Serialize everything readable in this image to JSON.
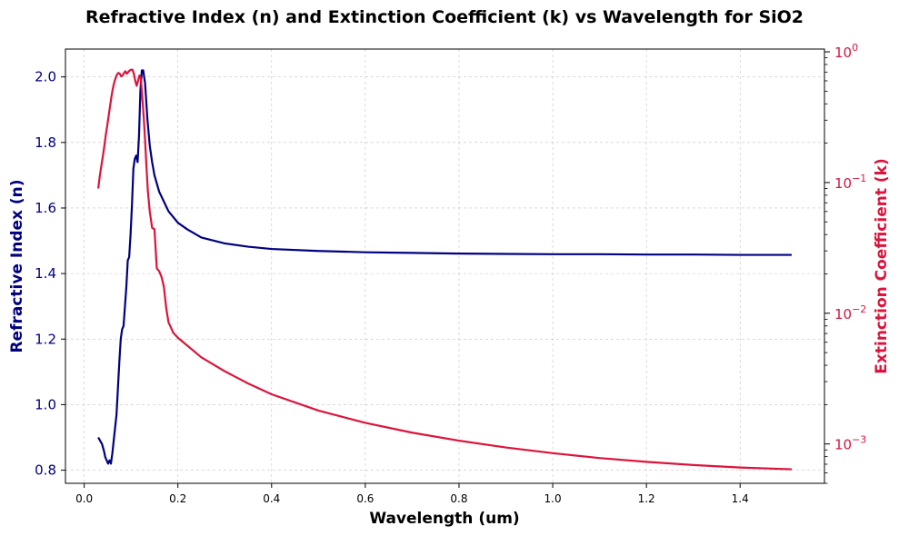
{
  "chart_data": {
    "type": "line",
    "title": "Refractive Index (n) and Extinction Coefficient (k) vs Wavelength for SiO2",
    "xlabel": "Wavelength (um)",
    "ylabel_left": "Refractive Index (n)",
    "ylabel_right": "Extinction Coefficient (k)",
    "xlim": [
      -0.04,
      1.58
    ],
    "ylim_left": [
      0.76,
      2.085
    ],
    "ylim_right": [
      0.0005,
      1.05
    ],
    "right_scale": "log",
    "grid": true,
    "x_ticks": [
      "0.0",
      "0.2",
      "0.4",
      "0.6",
      "0.8",
      "1.0",
      "1.2",
      "1.4"
    ],
    "left_ticks": [
      "0.8",
      "1.0",
      "1.2",
      "1.4",
      "1.6",
      "1.8",
      "2.0"
    ],
    "right_ticks": [
      "10^-3",
      "10^-2",
      "10^-1",
      "10^0"
    ],
    "series": [
      {
        "name": "n",
        "axis": "left",
        "color": "#000080",
        "points": [
          [
            0.03,
            0.9
          ],
          [
            0.038,
            0.88
          ],
          [
            0.042,
            0.86
          ],
          [
            0.045,
            0.84
          ],
          [
            0.048,
            0.83
          ],
          [
            0.051,
            0.82
          ],
          [
            0.054,
            0.83
          ],
          [
            0.057,
            0.82
          ],
          [
            0.06,
            0.85
          ],
          [
            0.063,
            0.89
          ],
          [
            0.066,
            0.93
          ],
          [
            0.069,
            0.97
          ],
          [
            0.072,
            1.05
          ],
          [
            0.075,
            1.13
          ],
          [
            0.078,
            1.2
          ],
          [
            0.081,
            1.23
          ],
          [
            0.084,
            1.24
          ],
          [
            0.087,
            1.3
          ],
          [
            0.09,
            1.36
          ],
          [
            0.093,
            1.44
          ],
          [
            0.096,
            1.45
          ],
          [
            0.099,
            1.52
          ],
          [
            0.102,
            1.61
          ],
          [
            0.105,
            1.72
          ],
          [
            0.108,
            1.75
          ],
          [
            0.111,
            1.76
          ],
          [
            0.114,
            1.74
          ],
          [
            0.117,
            1.82
          ],
          [
            0.12,
            1.96
          ],
          [
            0.123,
            2.02
          ],
          [
            0.126,
            2.02
          ],
          [
            0.13,
            1.98
          ],
          [
            0.135,
            1.87
          ],
          [
            0.14,
            1.79
          ],
          [
            0.145,
            1.74
          ],
          [
            0.15,
            1.7
          ],
          [
            0.16,
            1.65
          ],
          [
            0.17,
            1.62
          ],
          [
            0.18,
            1.59
          ],
          [
            0.2,
            1.555
          ],
          [
            0.22,
            1.535
          ],
          [
            0.25,
            1.51
          ],
          [
            0.3,
            1.492
          ],
          [
            0.35,
            1.482
          ],
          [
            0.4,
            1.475
          ],
          [
            0.5,
            1.469
          ],
          [
            0.6,
            1.465
          ],
          [
            0.7,
            1.463
          ],
          [
            0.8,
            1.461
          ],
          [
            0.9,
            1.46
          ],
          [
            1.0,
            1.459
          ],
          [
            1.1,
            1.459
          ],
          [
            1.2,
            1.458
          ],
          [
            1.3,
            1.458
          ],
          [
            1.4,
            1.457
          ],
          [
            1.51,
            1.457
          ]
        ]
      },
      {
        "name": "k",
        "axis": "right",
        "color": "#dc143c",
        "points": [
          [
            0.03,
            0.09
          ],
          [
            0.033,
            0.11
          ],
          [
            0.036,
            0.13
          ],
          [
            0.04,
            0.16
          ],
          [
            0.043,
            0.19
          ],
          [
            0.046,
            0.23
          ],
          [
            0.049,
            0.27
          ],
          [
            0.052,
            0.32
          ],
          [
            0.055,
            0.38
          ],
          [
            0.058,
            0.45
          ],
          [
            0.061,
            0.52
          ],
          [
            0.064,
            0.58
          ],
          [
            0.067,
            0.63
          ],
          [
            0.07,
            0.67
          ],
          [
            0.073,
            0.69
          ],
          [
            0.076,
            0.68
          ],
          [
            0.079,
            0.65
          ],
          [
            0.082,
            0.66
          ],
          [
            0.085,
            0.69
          ],
          [
            0.088,
            0.71
          ],
          [
            0.091,
            0.68
          ],
          [
            0.094,
            0.7
          ],
          [
            0.097,
            0.72
          ],
          [
            0.1,
            0.73
          ],
          [
            0.103,
            0.73
          ],
          [
            0.106,
            0.68
          ],
          [
            0.109,
            0.6
          ],
          [
            0.112,
            0.55
          ],
          [
            0.115,
            0.6
          ],
          [
            0.118,
            0.66
          ],
          [
            0.121,
            0.62
          ],
          [
            0.124,
            0.45
          ],
          [
            0.127,
            0.32
          ],
          [
            0.13,
            0.21
          ],
          [
            0.133,
            0.13
          ],
          [
            0.136,
            0.085
          ],
          [
            0.14,
            0.06
          ],
          [
            0.145,
            0.045
          ],
          [
            0.15,
            0.044
          ],
          [
            0.155,
            0.022
          ],
          [
            0.16,
            0.021
          ],
          [
            0.165,
            0.019
          ],
          [
            0.17,
            0.016
          ],
          [
            0.175,
            0.011
          ],
          [
            0.18,
            0.0085
          ],
          [
            0.185,
            0.0078
          ],
          [
            0.19,
            0.0071
          ],
          [
            0.2,
            0.0065
          ],
          [
            0.25,
            0.0046
          ],
          [
            0.3,
            0.0036
          ],
          [
            0.35,
            0.0029
          ],
          [
            0.4,
            0.0024
          ],
          [
            0.5,
            0.0018
          ],
          [
            0.6,
            0.00145
          ],
          [
            0.7,
            0.00122
          ],
          [
            0.8,
            0.00106
          ],
          [
            0.9,
            0.00094
          ],
          [
            1.0,
            0.00085
          ],
          [
            1.1,
            0.00078
          ],
          [
            1.2,
            0.00073
          ],
          [
            1.3,
            0.00069
          ],
          [
            1.4,
            0.00066
          ],
          [
            1.51,
            0.00064
          ]
        ]
      }
    ]
  }
}
